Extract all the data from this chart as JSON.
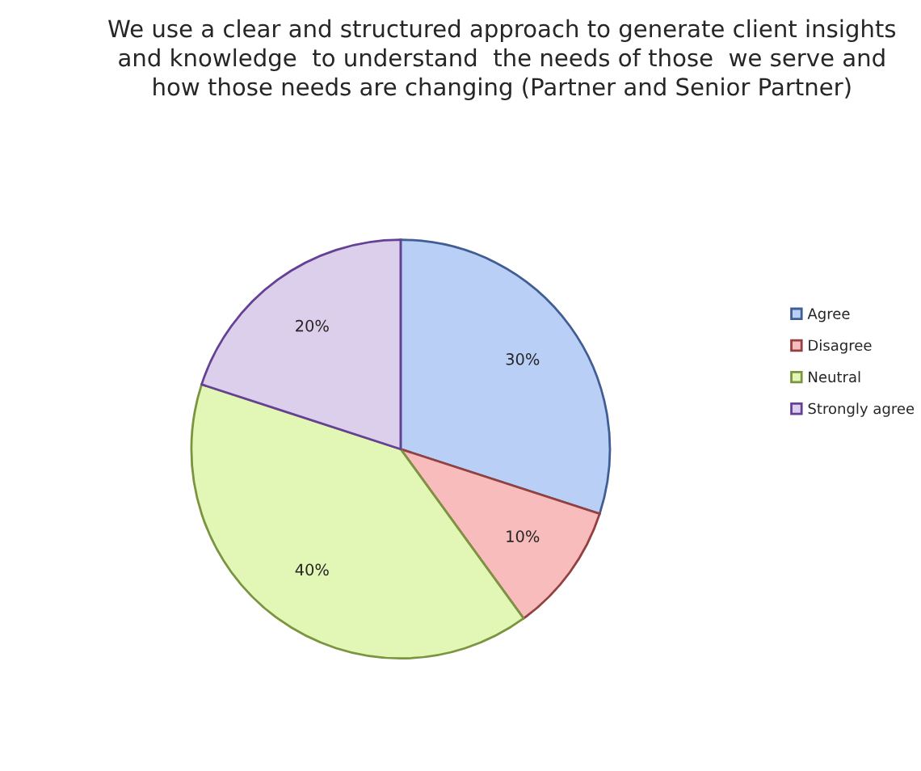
{
  "chart_data": {
    "type": "pie",
    "title": "We use a clear and structured approach to generate client insights\nand knowledge  to understand  the needs of those  we serve and\nhow those needs are changing (Partner and Senior Partner)",
    "categories": [
      "Agree",
      "Disagree",
      "Neutral",
      "Strongly agree"
    ],
    "values": [
      30,
      10,
      40,
      20
    ],
    "colors": [
      "#b9cff6",
      "#f8bcbc",
      "#e2f6b6",
      "#dccfec"
    ],
    "value_labels": [
      "30%",
      "10%",
      "40%",
      "20%"
    ],
    "legend": "right"
  }
}
